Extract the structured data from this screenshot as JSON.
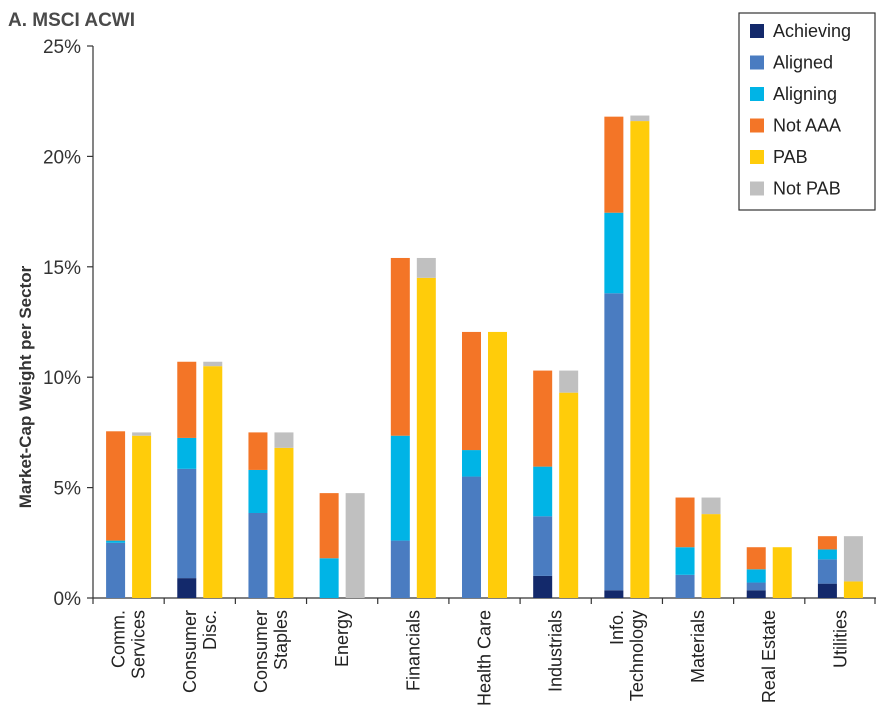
{
  "chart_data": {
    "type": "bar",
    "subtype": "grouped-stacked",
    "title": "A. MSCI ACWI",
    "xlabel": "",
    "ylabel": "Market-Cap Weight per Sector",
    "ylim": [
      0,
      25
    ],
    "yticks": [
      "0%",
      "5%",
      "10%",
      "15%",
      "20%",
      "25%"
    ],
    "grid": false,
    "legend_position": "top-right",
    "categories": [
      [
        "Comm.",
        "Services"
      ],
      [
        "Consumer",
        "Disc."
      ],
      [
        "Consumer",
        "Staples"
      ],
      [
        "Energy"
      ],
      [
        "Financials"
      ],
      [
        "Health Care"
      ],
      [
        "Industrials"
      ],
      [
        "Info.",
        "Technology"
      ],
      [
        "Materials"
      ],
      [
        "Real Estate"
      ],
      [
        "Utilities"
      ]
    ],
    "stacks": [
      {
        "name": "AAA",
        "series": [
          {
            "name": "Achieving",
            "color": "#13296b",
            "values": [
              0.0,
              0.9,
              0.0,
              0.0,
              0.0,
              0.0,
              1.0,
              0.35,
              0.0,
              0.35,
              0.65
            ]
          },
          {
            "name": "Aligned",
            "color": "#4a7cc1",
            "values": [
              2.5,
              4.95,
              3.85,
              0.0,
              2.6,
              5.5,
              2.7,
              13.45,
              1.05,
              0.35,
              1.1
            ]
          },
          {
            "name": "Aligning",
            "color": "#00b4e6",
            "values": [
              0.1,
              1.4,
              1.95,
              1.8,
              4.75,
              1.2,
              2.25,
              3.65,
              1.25,
              0.6,
              0.45
            ]
          },
          {
            "name": "Not AAA",
            "color": "#f37527",
            "values": [
              4.95,
              3.45,
              1.7,
              2.95,
              8.05,
              5.35,
              4.35,
              4.35,
              2.25,
              1.0,
              0.6
            ]
          }
        ]
      },
      {
        "name": "PAB",
        "series": [
          {
            "name": "PAB",
            "color": "#ffcc0a",
            "values": [
              7.35,
              10.5,
              6.8,
              0.0,
              14.5,
              12.05,
              9.3,
              21.6,
              3.8,
              2.3,
              0.75
            ]
          },
          {
            "name": "Not PAB",
            "color": "#c0c0c0",
            "values": [
              0.15,
              0.2,
              0.7,
              4.75,
              0.9,
              0.0,
              1.0,
              0.25,
              0.75,
              0.0,
              2.05
            ]
          }
        ]
      }
    ],
    "legend": [
      "Achieving",
      "Aligned",
      "Aligning",
      "Not AAA",
      "PAB",
      "Not PAB"
    ]
  }
}
